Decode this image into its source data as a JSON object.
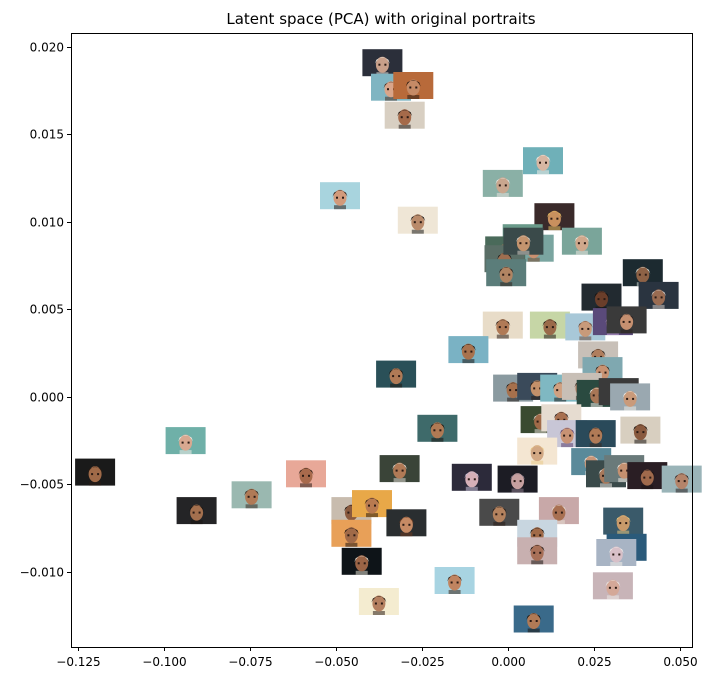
{
  "chart_data": {
    "type": "scatter",
    "title": "Latent space (PCA) with original portraits",
    "xlabel": "",
    "ylabel": "",
    "xlim": [
      -0.127,
      0.0535
    ],
    "ylim": [
      -0.0143,
      0.0208
    ],
    "xticks": [
      -0.125,
      -0.1,
      -0.075,
      -0.05,
      -0.025,
      0.0,
      0.025,
      0.05
    ],
    "xtick_labels": [
      "−0.125",
      "−0.100",
      "−0.075",
      "−0.050",
      "−0.025",
      "0.000",
      "0.025",
      "0.050"
    ],
    "yticks": [
      -0.01,
      -0.005,
      0.0,
      0.005,
      0.01,
      0.015,
      0.02
    ],
    "ytick_labels": [
      "−0.010",
      "−0.005",
      "0.000",
      "0.005",
      "0.010",
      "0.015",
      "0.020"
    ],
    "grid": false,
    "marker": "portrait thumbnail",
    "points": [
      {
        "x": -0.0365,
        "y": 0.0191,
        "bg": "#2b2f3a",
        "skin": "#c9a08a",
        "hair": "#e8e2da"
      },
      {
        "x": -0.034,
        "y": 0.0177,
        "bg": "#7fb5c2",
        "skin": "#d9a58a",
        "hair": "#4a2e22"
      },
      {
        "x": -0.0275,
        "y": 0.0178,
        "bg": "#b86a3a",
        "skin": "#c58a66",
        "hair": "#2a1a12"
      },
      {
        "x": -0.03,
        "y": 0.0161,
        "bg": "#d8cfc2",
        "skin": "#a56a4a",
        "hair": "#1e1410"
      },
      {
        "x": 0.0102,
        "y": 0.0135,
        "bg": "#6fb0b8",
        "skin": "#d7b6a2",
        "hair": "#f0ece6"
      },
      {
        "x": -0.0015,
        "y": 0.0122,
        "bg": "#8ab0a6",
        "skin": "#c9a68e",
        "hair": "#e6e2dc"
      },
      {
        "x": -0.0488,
        "y": 0.0115,
        "bg": "#a8d4de",
        "skin": "#d29a7a",
        "hair": "#2a1c16"
      },
      {
        "x": 0.0135,
        "y": 0.0103,
        "bg": "#3a2a2a",
        "skin": "#c9905e",
        "hair": "#e8c060"
      },
      {
        "x": -0.0262,
        "y": 0.0101,
        "bg": "#efe6d6",
        "skin": "#b98a6a",
        "hair": "#1a1a1a"
      },
      {
        "x": 0.0043,
        "y": 0.0091,
        "bg": "#6a9a8a",
        "skin": "#b6845e",
        "hair": "#d8d4cc"
      },
      {
        "x": 0.0075,
        "y": 0.0085,
        "bg": "#7aa5a0",
        "skin": "#c99070",
        "hair": "#7a4a30"
      },
      {
        "x": 0.0215,
        "y": 0.0089,
        "bg": "#7aa59a",
        "skin": "#d0a88c",
        "hair": "#ebe6de"
      },
      {
        "x": -0.0008,
        "y": 0.0084,
        "bg": "#4a6a5a",
        "skin": "#a87a5a",
        "hair": "#2a2420"
      },
      {
        "x": -0.001,
        "y": 0.0079,
        "bg": "#5a6e66",
        "skin": "#9e6e50",
        "hair": "#1e1a18"
      },
      {
        "x": 0.0045,
        "y": 0.0089,
        "bg": "#3a4a4a",
        "skin": "#c4946e",
        "hair": "#d2cbc2"
      },
      {
        "x": -0.0005,
        "y": 0.0071,
        "bg": "#5b7d7a",
        "skin": "#b18462",
        "hair": "#30231c"
      },
      {
        "x": 0.0392,
        "y": 0.0071,
        "bg": "#1c2a30",
        "skin": "#8e6246",
        "hair": "#d6e0da"
      },
      {
        "x": 0.0438,
        "y": 0.0058,
        "bg": "#2a3440",
        "skin": "#9a6c52",
        "hair": "#d0c8c2"
      },
      {
        "x": 0.0272,
        "y": 0.0057,
        "bg": "#222a30",
        "skin": "#6a3e2a",
        "hair": "#141010"
      },
      {
        "x": -0.0015,
        "y": 0.0041,
        "bg": "#e8dcc8",
        "skin": "#b07a56",
        "hair": "#2a1c14"
      },
      {
        "x": 0.0122,
        "y": 0.0041,
        "bg": "#c6d6a6",
        "skin": "#9a6a4a",
        "hair": "#241a14"
      },
      {
        "x": 0.0225,
        "y": 0.004,
        "bg": "#a8c8d8",
        "skin": "#c89a7a",
        "hair": "#6a4a3a"
      },
      {
        "x": 0.0305,
        "y": 0.0043,
        "bg": "#5a4a7a",
        "skin": "#d8a6a2",
        "hair": "#c8a8d8"
      },
      {
        "x": 0.0345,
        "y": 0.0044,
        "bg": "#3a3a3a",
        "skin": "#c69070",
        "hair": "#2a2020"
      },
      {
        "x": -0.0115,
        "y": 0.0027,
        "bg": "#7ab2c4",
        "skin": "#a8724e",
        "hair": "#1e1612"
      },
      {
        "x": 0.0262,
        "y": 0.0024,
        "bg": "#c8c0b8",
        "skin": "#b07e5e",
        "hair": "#2a2420"
      },
      {
        "x": 0.0275,
        "y": 0.0015,
        "bg": "#7fa8b0",
        "skin": "#c89272",
        "hair": "#2c2018"
      },
      {
        "x": -0.0325,
        "y": 0.0013,
        "bg": "#2a5058",
        "skin": "#b07a56",
        "hair": "#1e1812"
      },
      {
        "x": 0.0015,
        "y": 0.0005,
        "bg": "#8a9aa0",
        "skin": "#a6704c",
        "hair": "#241c18"
      },
      {
        "x": 0.0085,
        "y": 0.0006,
        "bg": "#3a4a5a",
        "skin": "#c4906a",
        "hair": "#2a1c16"
      },
      {
        "x": 0.0152,
        "y": 0.0005,
        "bg": "#7fb8c2",
        "skin": "#d0a080",
        "hair": "#1a1a1a"
      },
      {
        "x": 0.0215,
        "y": 0.0006,
        "bg": "#c8bfb6",
        "skin": "#b4846a",
        "hair": "#3a2a20"
      },
      {
        "x": 0.0258,
        "y": 0.0002,
        "bg": "#2a4a40",
        "skin": "#a87656",
        "hair": "#f0ece6"
      },
      {
        "x": 0.0322,
        "y": 0.0003,
        "bg": "#3a3a3a",
        "skin": "#c49a80",
        "hair": "#ece8e2"
      },
      {
        "x": 0.0355,
        "y": 0.0,
        "bg": "#9aa8b0",
        "skin": "#c99a7a",
        "hair": "#eeeae4"
      },
      {
        "x": 0.0095,
        "y": -0.0013,
        "bg": "#3a4a30",
        "skin": "#a06a48",
        "hair": "#dcd6cc"
      },
      {
        "x": 0.0155,
        "y": -0.0012,
        "bg": "#e6dcd0",
        "skin": "#a87050",
        "hair": "#2a2020"
      },
      {
        "x": -0.0205,
        "y": -0.0018,
        "bg": "#3e6a6a",
        "skin": "#b07a54",
        "hair": "#1a1410"
      },
      {
        "x": 0.0385,
        "y": -0.0019,
        "bg": "#d8cfc0",
        "skin": "#8a5a3e",
        "hair": "#1a1410"
      },
      {
        "x": -0.0937,
        "y": -0.0025,
        "bg": "#6fb0a8",
        "skin": "#d8a890",
        "hair": "#f0ece8"
      },
      {
        "x": 0.0172,
        "y": -0.0021,
        "bg": "#c8c6d6",
        "skin": "#c89274",
        "hair": "#5a4070"
      },
      {
        "x": 0.0255,
        "y": -0.0021,
        "bg": "#2a4a5a",
        "skin": "#b07a56",
        "hair": "#3a2a20"
      },
      {
        "x": 0.0085,
        "y": -0.0031,
        "bg": "#f4e6d2",
        "skin": "#d2a884",
        "hair": "#e8c888"
      },
      {
        "x": -0.0105,
        "y": -0.0046,
        "bg": "#2c2a3a",
        "skin": "#d6b0b8",
        "hair": "#c8c0d8"
      },
      {
        "x": 0.0028,
        "y": -0.0047,
        "bg": "#1c1c24",
        "skin": "#c6a0a0",
        "hair": "#8a7a8a"
      },
      {
        "x": -0.0315,
        "y": -0.0041,
        "bg": "#3a4438",
        "skin": "#b07a56",
        "hair": "#dcd8d0"
      },
      {
        "x": -0.0587,
        "y": -0.0044,
        "bg": "#e8a898",
        "skin": "#a86a4c",
        "hair": "#2a1c16"
      },
      {
        "x": 0.0242,
        "y": -0.0037,
        "bg": "#5a8a9a",
        "skin": "#c89678",
        "hair": "#e8e4de"
      },
      {
        "x": 0.0285,
        "y": -0.0044,
        "bg": "#3a4a4a",
        "skin": "#a8785a",
        "hair": "#e6e2dc"
      },
      {
        "x": 0.0338,
        "y": -0.0041,
        "bg": "#6a7a7a",
        "skin": "#c49070",
        "hair": "#f0ece6"
      },
      {
        "x": 0.0405,
        "y": -0.0045,
        "bg": "#2a1e24",
        "skin": "#a06a4c",
        "hair": "#1c1414"
      },
      {
        "x": 0.0505,
        "y": -0.0047,
        "bg": "#9ab4b8",
        "skin": "#b4846a",
        "hair": "#2a2020"
      },
      {
        "x": -0.12,
        "y": -0.0043,
        "bg": "#1a1a1a",
        "skin": "#a06a48",
        "hair": "#2a1c14"
      },
      {
        "x": -0.0745,
        "y": -0.0056,
        "bg": "#9ab8b0",
        "skin": "#b07a56",
        "hair": "#3a2a20"
      },
      {
        "x": -0.0905,
        "y": -0.0065,
        "bg": "#242426",
        "skin": "#a4704e",
        "hair": "#1a1410"
      },
      {
        "x": -0.0455,
        "y": -0.0065,
        "bg": "#c8bcae",
        "skin": "#8a5a3e",
        "hair": "#1a1410"
      },
      {
        "x": -0.0395,
        "y": -0.0061,
        "bg": "#e8a848",
        "skin": "#b87a50",
        "hair": "#2a1c14"
      },
      {
        "x": -0.0295,
        "y": -0.0072,
        "bg": "#2a2e30",
        "skin": "#c68a64",
        "hair": "#6a3a20"
      },
      {
        "x": -0.0025,
        "y": -0.0066,
        "bg": "#4a4a4a",
        "skin": "#b4825e",
        "hair": "#2a1c16"
      },
      {
        "x": 0.0148,
        "y": -0.0065,
        "bg": "#c8a8a8",
        "skin": "#a87052",
        "hair": "#e6dcd2"
      },
      {
        "x": 0.0335,
        "y": -0.0071,
        "bg": "#3a5a6a",
        "skin": "#c89a6a",
        "hair": "#e8c880"
      },
      {
        "x": 0.0085,
        "y": -0.0078,
        "bg": "#c8d6e0",
        "skin": "#a06a48",
        "hair": "#1a1410"
      },
      {
        "x": -0.0455,
        "y": -0.0078,
        "bg": "#e8a058",
        "skin": "#a06a48",
        "hair": "#1e1410"
      },
      {
        "x": 0.0345,
        "y": -0.0086,
        "bg": "#2a5a7a",
        "skin": "#a8d0e0",
        "hair": "#c0d6e6"
      },
      {
        "x": 0.0315,
        "y": -0.0089,
        "bg": "#a8b4c4",
        "skin": "#d8c0c8",
        "hair": "#f0ece8"
      },
      {
        "x": 0.0085,
        "y": -0.0088,
        "bg": "#c8b0b0",
        "skin": "#a87058",
        "hair": "#1a1410"
      },
      {
        "x": -0.0425,
        "y": -0.0094,
        "bg": "#0e1418",
        "skin": "#9a6446",
        "hair": "#e0dcd0"
      },
      {
        "x": -0.0155,
        "y": -0.0105,
        "bg": "#a8d4e2",
        "skin": "#c08460",
        "hair": "#3a2418"
      },
      {
        "x": 0.0305,
        "y": -0.0108,
        "bg": "#c8b4b8",
        "skin": "#d4a898",
        "hair": "#ece8e4"
      },
      {
        "x": -0.0375,
        "y": -0.0117,
        "bg": "#f4ecd0",
        "skin": "#b48060",
        "hair": "#2a1c14"
      },
      {
        "x": 0.0075,
        "y": -0.0127,
        "bg": "#3a6a8a",
        "skin": "#b07a56",
        "hair": "#1a1410"
      }
    ]
  }
}
